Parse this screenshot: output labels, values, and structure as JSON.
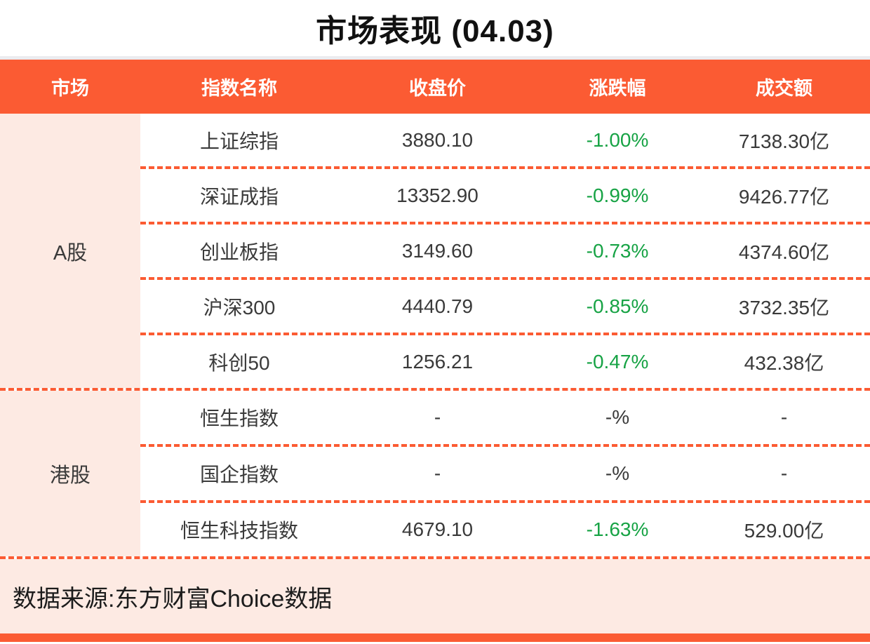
{
  "title": "市场表现 (04.03)",
  "table": {
    "headers": [
      "市场",
      "指数名称",
      "收盘价",
      "涨跌幅",
      "成交额"
    ],
    "groups": [
      {
        "market": "A股",
        "rows": [
          {
            "name": "上证综指",
            "close": "3880.10",
            "change": "-1.00%",
            "turnover": "7138.30亿",
            "change_color": "green"
          },
          {
            "name": "深证成指",
            "close": "13352.90",
            "change": "-0.99%",
            "turnover": "9426.77亿",
            "change_color": "green"
          },
          {
            "name": "创业板指",
            "close": "3149.60",
            "change": "-0.73%",
            "turnover": "4374.60亿",
            "change_color": "green"
          },
          {
            "name": "沪深300",
            "close": "4440.79",
            "change": "-0.85%",
            "turnover": "3732.35亿",
            "change_color": "green"
          },
          {
            "name": "科创50",
            "close": "1256.21",
            "change": "-0.47%",
            "turnover": "432.38亿",
            "change_color": "green"
          }
        ]
      },
      {
        "market": "港股",
        "rows": [
          {
            "name": "恒生指数",
            "close": "-",
            "change": "-%",
            "turnover": "-",
            "change_color": "dark"
          },
          {
            "name": "国企指数",
            "close": "-",
            "change": "-%",
            "turnover": "-",
            "change_color": "dark"
          },
          {
            "name": "恒生科技指数",
            "close": "4679.10",
            "change": "-1.63%",
            "turnover": "529.00亿",
            "change_color": "green"
          }
        ]
      }
    ]
  },
  "footer": {
    "source": "数据来源:东方财富Choice数据"
  },
  "colors": {
    "accent": "#fb5b33",
    "panel_pink": "#fdeae3",
    "down_green": "#17a345",
    "text_dark": "#3a3a3a"
  }
}
